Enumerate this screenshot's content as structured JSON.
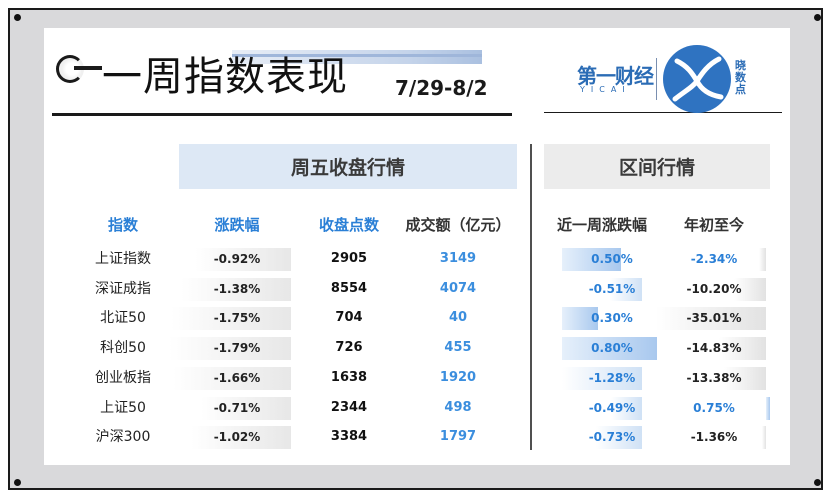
{
  "header": {
    "title": "一周指数表现",
    "date_range": "7/29-8/2",
    "logo": {
      "brand_cn": "第一财经",
      "brand_en": "YICAI",
      "side_text": [
        "晓",
        "数",
        "点"
      ]
    }
  },
  "sections": {
    "friday_close": "周五收盘行情",
    "interval": "区间行情"
  },
  "columns": {
    "index": "指数",
    "change": "涨跌幅",
    "close": "收盘点数",
    "volume": "成交额（亿元）",
    "week_change": "近一周涨跌幅",
    "ytd": "年初至今"
  },
  "colors": {
    "accent_blue": "#2a7fd6",
    "section_blue": "#dde8f5",
    "section_grey": "#ececec"
  },
  "rows": [
    {
      "name": "上证指数",
      "change": "-0.92%",
      "close": "2905",
      "volume": "3149",
      "week_change": "0.50%",
      "ytd": "-2.34%"
    },
    {
      "name": "深证成指",
      "change": "-1.38%",
      "close": "8554",
      "volume": "4074",
      "week_change": "-0.51%",
      "ytd": "-10.20%"
    },
    {
      "name": "北证50",
      "change": "-1.75%",
      "close": "704",
      "volume": "40",
      "week_change": "0.30%",
      "ytd": "-35.01%"
    },
    {
      "name": "科创50",
      "change": "-1.79%",
      "close": "726",
      "volume": "455",
      "week_change": "0.80%",
      "ytd": "-14.83%"
    },
    {
      "name": "创业板指",
      "change": "-1.66%",
      "close": "1638",
      "volume": "1920",
      "week_change": "-1.28%",
      "ytd": "-13.38%"
    },
    {
      "name": "上证50",
      "change": "-0.71%",
      "close": "2344",
      "volume": "498",
      "week_change": "-0.49%",
      "ytd": "0.75%"
    },
    {
      "name": "沪深300",
      "change": "-1.02%",
      "close": "3384",
      "volume": "1797",
      "week_change": "-0.73%",
      "ytd": "-1.36%"
    }
  ]
}
